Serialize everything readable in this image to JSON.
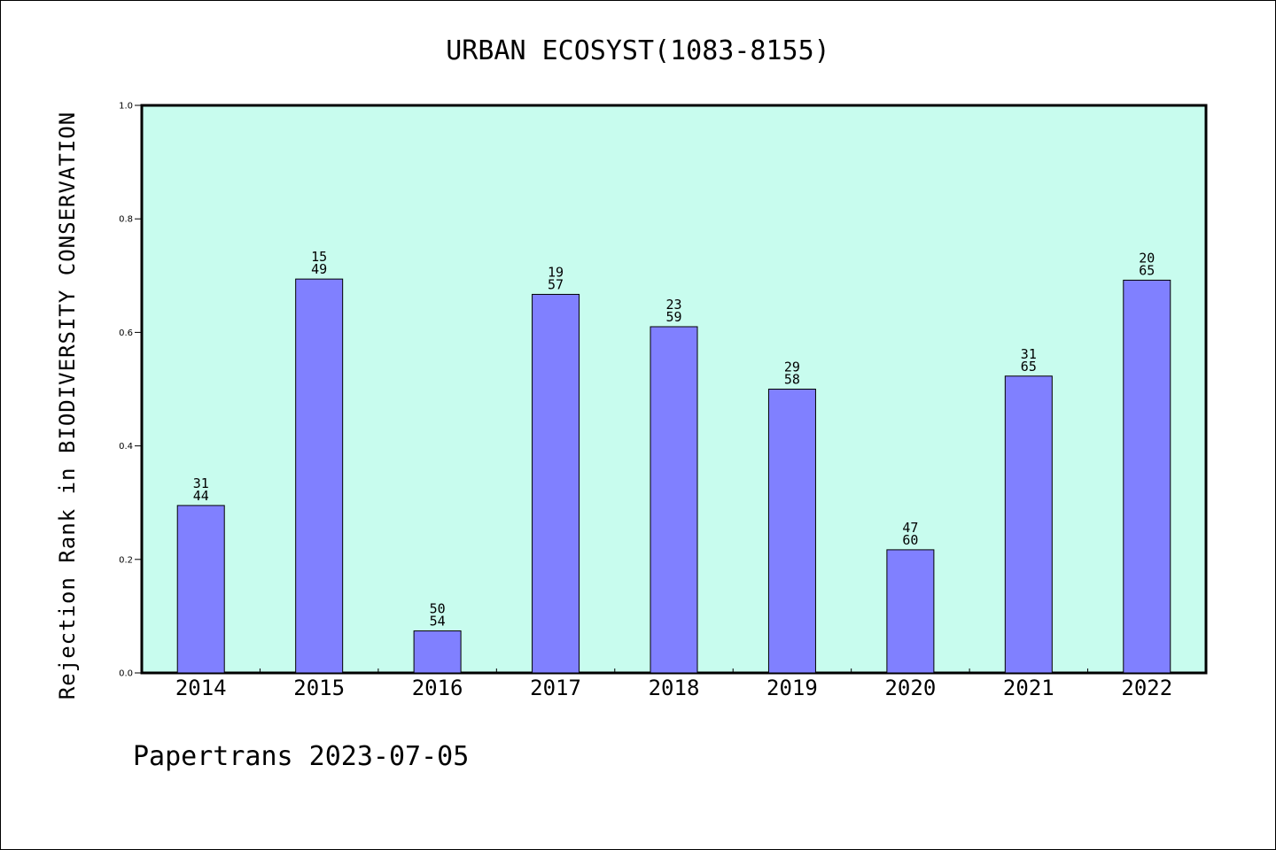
{
  "chart_data": {
    "type": "bar",
    "title": "URBAN ECOSYST(1083-8155)",
    "xlabel": "",
    "ylabel": "Rejection Rank in BIODIVERSITY CONSERVATION",
    "ylim": [
      0.0,
      1.0
    ],
    "yticks": [
      "0.0",
      "0.2",
      "0.4",
      "0.6",
      "0.8",
      "1.0"
    ],
    "categories": [
      "2014",
      "2015",
      "2016",
      "2017",
      "2018",
      "2019",
      "2020",
      "2021",
      "2022"
    ],
    "values": [
      0.295,
      0.694,
      0.074,
      0.667,
      0.61,
      0.5,
      0.217,
      0.523,
      0.692
    ],
    "labels": [
      [
        "31",
        "44"
      ],
      [
        "15",
        "49"
      ],
      [
        "50",
        "54"
      ],
      [
        "19",
        "57"
      ],
      [
        "23",
        "59"
      ],
      [
        "29",
        "58"
      ],
      [
        "47",
        "60"
      ],
      [
        "31",
        "65"
      ],
      [
        "20",
        "65"
      ]
    ],
    "colors": {
      "plot_background": "#c8fcee",
      "bar_fill": "#8080ff",
      "bar_stroke": "#000000"
    },
    "grid": false,
    "legend": "none"
  },
  "footer": "Papertrans 2023-07-05"
}
